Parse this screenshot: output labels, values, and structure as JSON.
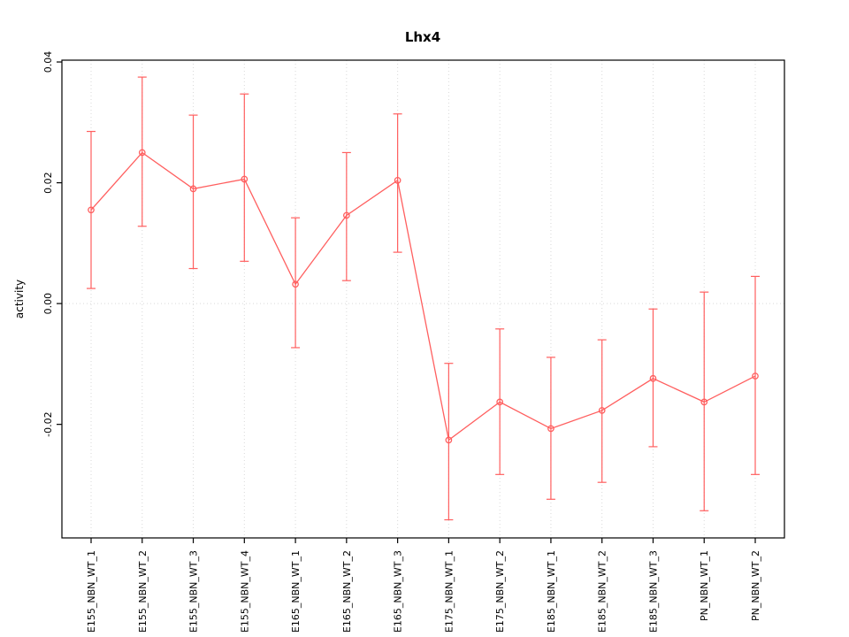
{
  "chart_data": {
    "type": "line",
    "title": "Lhx4",
    "xlabel": "",
    "ylabel": "activity",
    "ylim": [
      -0.0388,
      0.0403
    ],
    "yticks": [
      -0.02,
      0.0,
      0.02,
      0.04
    ],
    "ytick_labels": [
      "-0.02",
      "0.00",
      "0.02",
      "0.04"
    ],
    "grid": true,
    "zero_line": true,
    "legend": "none",
    "color": "#ff5f5f",
    "grid_color": "#d9d9d9",
    "categories": [
      "E155_NBN_WT_1",
      "E155_NBN_WT_2",
      "E155_NBN_WT_3",
      "E155_NBN_WT_4",
      "E165_NBN_WT_1",
      "E165_NBN_WT_2",
      "E165_NBN_WT_3",
      "E175_NBN_WT_1",
      "E175_NBN_WT_2",
      "E185_NBN_WT_1",
      "E185_NBN_WT_2",
      "E185_NBN_WT_3",
      "PN_NBN_WT_1",
      "PN_NBN_WT_2"
    ],
    "series": [
      {
        "name": "activity",
        "marker": "open-circle",
        "error_bars": true,
        "values": [
          0.0155,
          0.025,
          0.019,
          0.0206,
          0.0032,
          0.0146,
          0.0204,
          -0.0226,
          -0.0163,
          -0.0207,
          -0.0177,
          -0.0124,
          -0.0163,
          -0.012
        ],
        "upper": [
          0.0285,
          0.0375,
          0.0312,
          0.0347,
          0.0142,
          0.025,
          0.0314,
          -0.0099,
          -0.0042,
          -0.0089,
          -0.006,
          -0.0009,
          0.0019,
          0.0045
        ],
        "lower": [
          0.0025,
          0.0128,
          0.0058,
          0.007,
          -0.0073,
          0.0038,
          0.0085,
          -0.0358,
          -0.0283,
          -0.0324,
          -0.0296,
          -0.0237,
          -0.0343,
          -0.0283
        ]
      }
    ]
  }
}
